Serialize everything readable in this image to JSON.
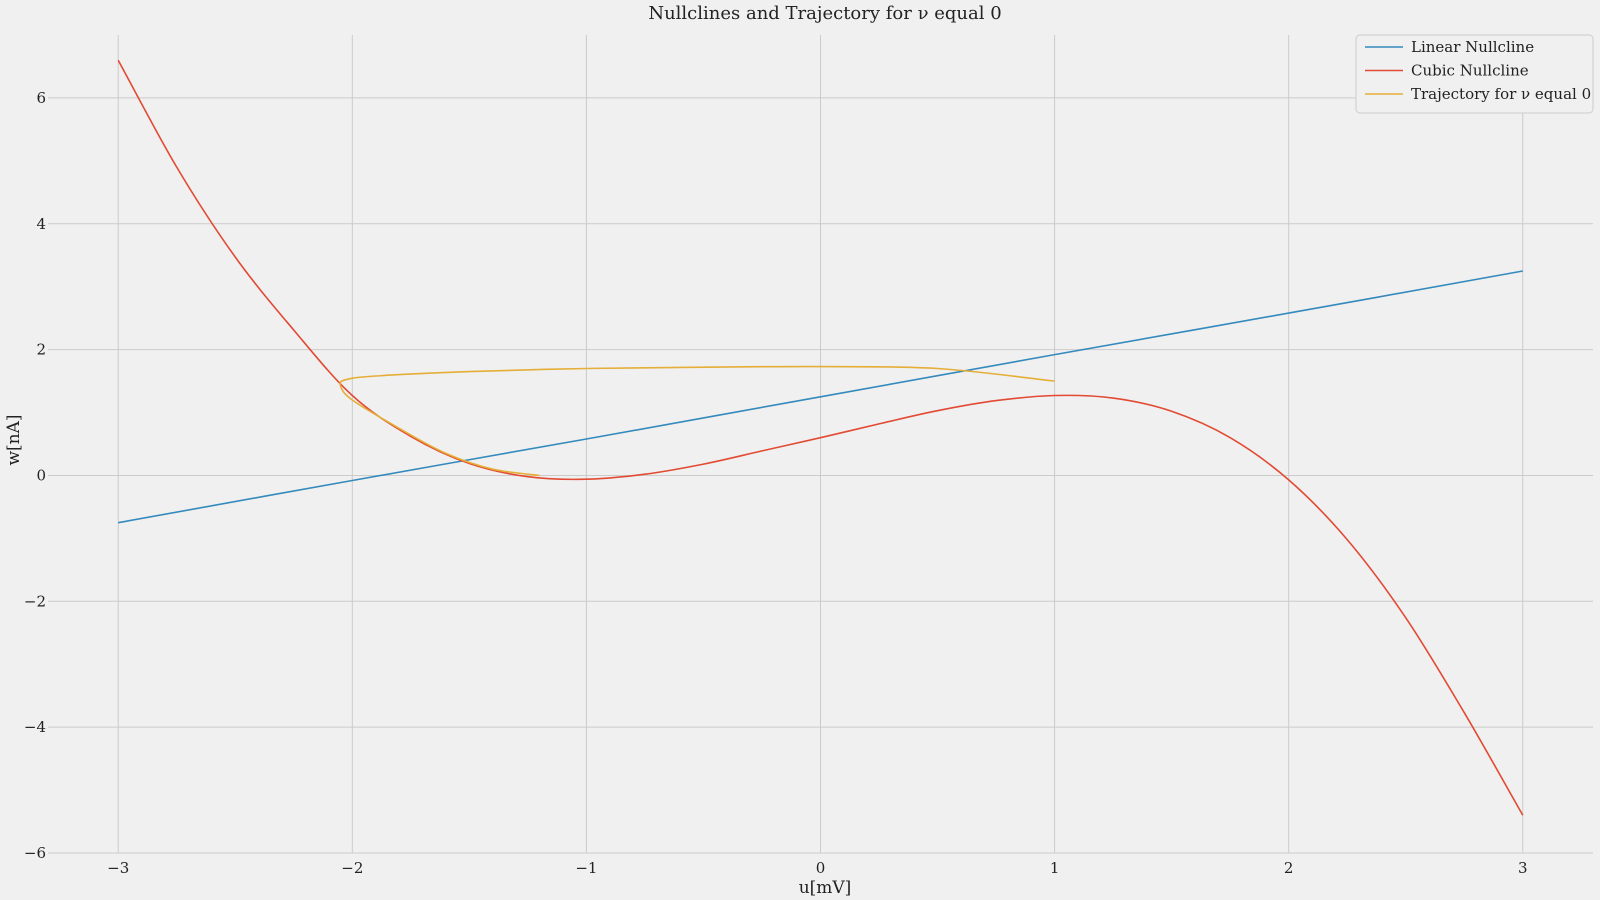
{
  "chart_data": {
    "type": "line",
    "title": "Nullclines and Trajectory for ν equal 0",
    "xlabel": "u[mV]",
    "ylabel": "w[nA]",
    "xlim": [
      -3.3,
      3.3
    ],
    "ylim": [
      -6.0,
      7.0
    ],
    "xticks": [
      -3,
      -2,
      -1,
      0,
      1,
      2,
      3
    ],
    "xtick_labels": [
      "−3",
      "−2",
      "−1",
      "0",
      "1",
      "2",
      "3"
    ],
    "yticks": [
      -6,
      -4,
      -2,
      0,
      2,
      4,
      6
    ],
    "ytick_labels": [
      "−6",
      "−4",
      "−2",
      "0",
      "2",
      "4",
      "6"
    ],
    "grid": true,
    "legend_position": "top-right",
    "series": [
      {
        "name": "Linear Nullcline",
        "color": "#348abd",
        "x": [
          -3,
          -2,
          -1,
          0,
          1,
          2,
          3
        ],
        "y": [
          -0.75,
          -0.08,
          0.58,
          1.25,
          1.92,
          2.58,
          3.25
        ]
      },
      {
        "name": "Cubic Nullcline",
        "color": "#e24a33",
        "x": [
          -3,
          -2.75,
          -2.5,
          -2.25,
          -2,
          -1.75,
          -1.5,
          -1.25,
          -1,
          -0.75,
          -0.5,
          -0.25,
          0,
          0.25,
          0.5,
          0.75,
          1,
          1.25,
          1.5,
          1.75,
          2,
          2.25,
          2.5,
          2.75,
          3
        ],
        "y": [
          6.6,
          4.9,
          3.47,
          2.31,
          1.27,
          0.62,
          0.19,
          -0.02,
          -0.06,
          0.02,
          0.18,
          0.39,
          0.6,
          0.82,
          1.03,
          1.19,
          1.27,
          1.23,
          1.02,
          0.6,
          -0.07,
          -1.02,
          -2.26,
          -3.77,
          -5.4
        ]
      },
      {
        "name": "Trajectory for ν equal 0",
        "color": "#e5ae38",
        "x": [
          1,
          0.5,
          0,
          -0.5,
          -1,
          -1.5,
          -1.9,
          -2.03,
          -2.05,
          -2.0,
          -1.8,
          -1.6,
          -1.4,
          -1.2
        ],
        "y": [
          1.5,
          1.7,
          1.73,
          1.72,
          1.7,
          1.65,
          1.58,
          1.52,
          1.42,
          1.2,
          0.75,
          0.35,
          0.1,
          0.0
        ]
      }
    ]
  }
}
